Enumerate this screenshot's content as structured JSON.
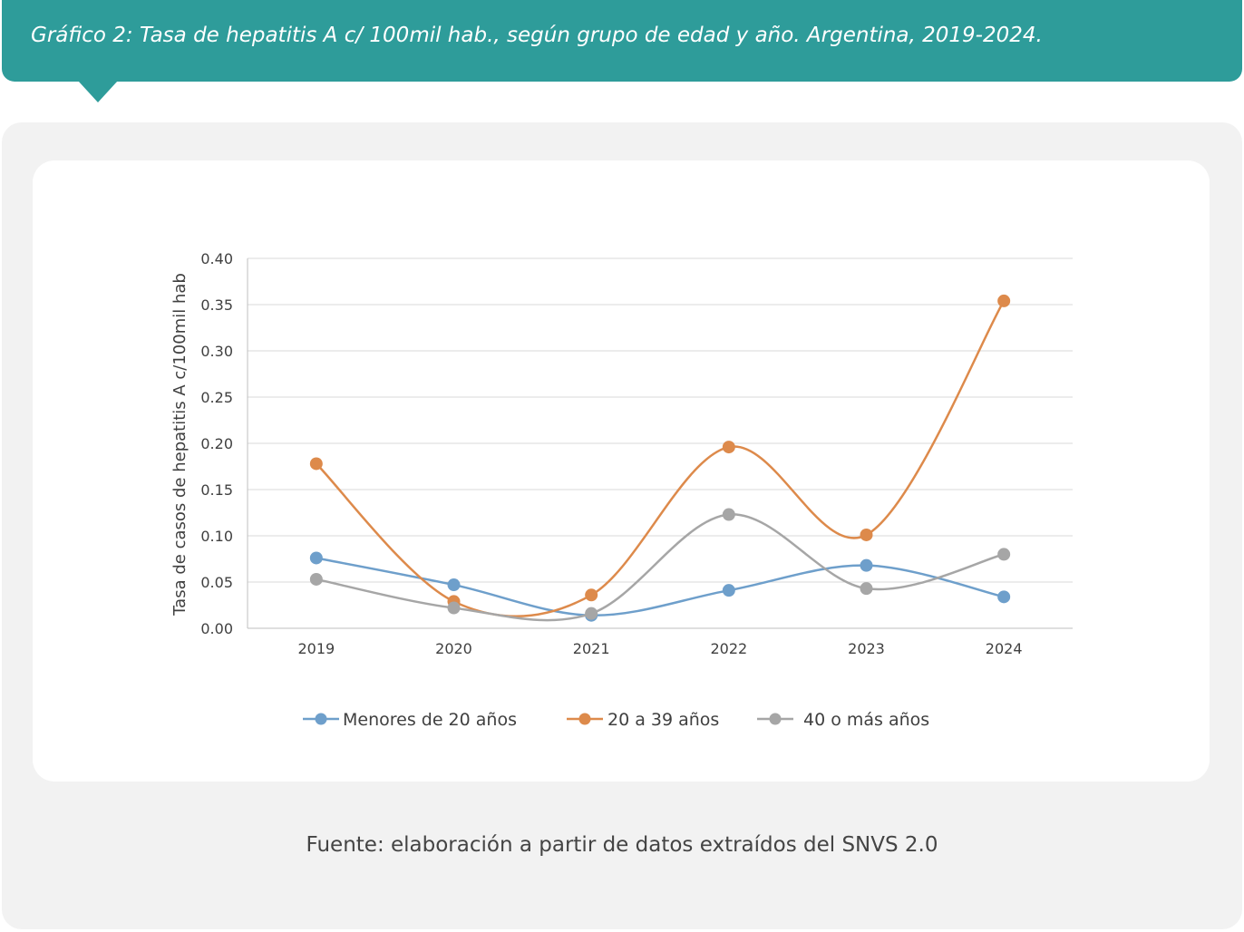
{
  "header": {
    "title": "Gráfico 2: Tasa de hepatitis A c/ 100mil hab., según grupo de edad y año. Argentina, 2019-2024."
  },
  "footer": {
    "source": "Fuente: elaboración a partir de datos extraídos del SNVS 2.0"
  },
  "colors": {
    "banner": "#2e9c9a",
    "panel": "#f2f2f2"
  },
  "chart_data": {
    "type": "line",
    "title": "",
    "xlabel": "",
    "ylabel": "Tasa de casos de hepatitis A c/100mil hab",
    "categories": [
      "2019",
      "2020",
      "2021",
      "2022",
      "2023",
      "2024"
    ],
    "ylim": [
      0,
      0.4
    ],
    "yticks": [
      "0.00",
      "0.05",
      "0.10",
      "0.15",
      "0.20",
      "0.25",
      "0.30",
      "0.35",
      "0.40"
    ],
    "grid": true,
    "smooth": true,
    "legend_position": "bottom",
    "series": [
      {
        "name": "Menores de 20 años",
        "color": "#6e9fcb",
        "values": [
          0.076,
          0.047,
          0.014,
          0.041,
          0.068,
          0.034
        ]
      },
      {
        "name": "20 a 39 años",
        "color": "#dd8a4b",
        "values": [
          0.178,
          0.029,
          0.036,
          0.196,
          0.101,
          0.354
        ]
      },
      {
        "name": "40 o más años",
        "color": "#a6a6a6",
        "values": [
          0.053,
          0.022,
          0.016,
          0.123,
          0.043,
          0.08
        ]
      }
    ]
  }
}
